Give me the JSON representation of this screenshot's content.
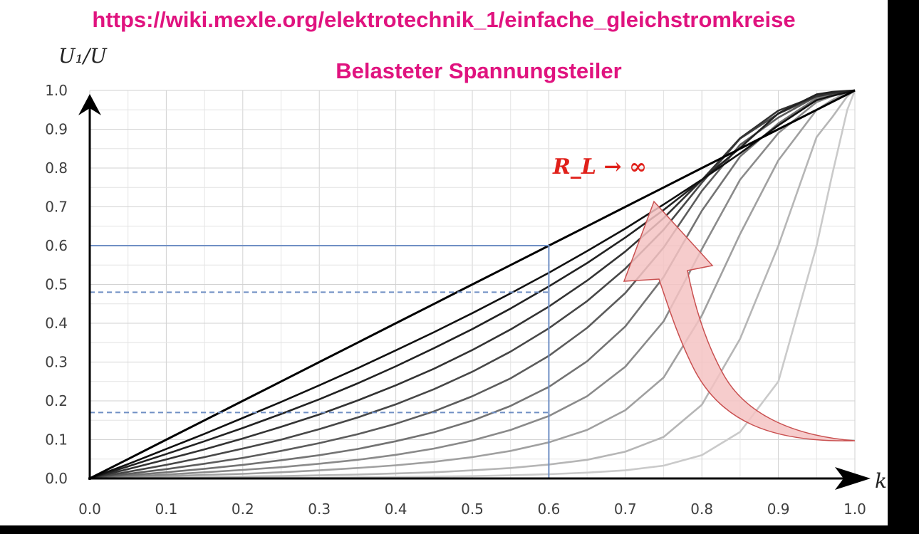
{
  "source_url": "https://wiki.mexle.org/elektrotechnik_1/einfache_gleichstromkreise",
  "chart_data": {
    "type": "line",
    "title": "Belasteter Spannungsteiler",
    "ylabel": "U₁/U",
    "xlabel": "k",
    "xlim": [
      0,
      1
    ],
    "ylim": [
      0,
      1
    ],
    "xticks": [
      "0.0",
      "0.1",
      "0.2",
      "0.3",
      "0.4",
      "0.5",
      "0.6",
      "0.7",
      "0.8",
      "0.9",
      "1.0"
    ],
    "yticks": [
      "0.0",
      "0.1",
      "0.2",
      "0.3",
      "0.4",
      "0.5",
      "0.6",
      "0.7",
      "0.8",
      "0.9",
      "1.0"
    ],
    "grid": true,
    "x": [
      0,
      0.05,
      0.1,
      0.15,
      0.2,
      0.25,
      0.3,
      0.35,
      0.4,
      0.45,
      0.5,
      0.55,
      0.6,
      0.65,
      0.7,
      0.75,
      0.8,
      0.85,
      0.9,
      0.95,
      0.97,
      0.99,
      1.0
    ],
    "series": [
      {
        "color": "#000000",
        "values": [
          0,
          0.05,
          0.1,
          0.15,
          0.2,
          0.25,
          0.3,
          0.35,
          0.4,
          0.45,
          0.5,
          0.55,
          0.6,
          0.65,
          0.7,
          0.75,
          0.8,
          0.85,
          0.9,
          0.95,
          0.97,
          0.99,
          1.0
        ]
      },
      {
        "color": "#111111",
        "values": [
          0,
          0.037,
          0.076,
          0.115,
          0.156,
          0.197,
          0.24,
          0.284,
          0.33,
          0.377,
          0.426,
          0.477,
          0.53,
          0.586,
          0.644,
          0.706,
          0.77,
          0.838,
          0.91,
          0.975,
          0.986,
          0.995,
          1.0
        ]
      },
      {
        "color": "#222222",
        "values": [
          0,
          0.031,
          0.063,
          0.096,
          0.13,
          0.166,
          0.204,
          0.245,
          0.289,
          0.336,
          0.385,
          0.438,
          0.495,
          0.555,
          0.621,
          0.692,
          0.769,
          0.852,
          0.941,
          0.99,
          0.996,
          0.999,
          1.0
        ]
      },
      {
        "color": "#333333",
        "values": [
          0,
          0.024,
          0.049,
          0.075,
          0.103,
          0.133,
          0.165,
          0.201,
          0.24,
          0.283,
          0.331,
          0.384,
          0.443,
          0.51,
          0.585,
          0.671,
          0.769,
          0.877,
          0.948,
          0.985,
          0.992,
          0.998,
          1.0
        ]
      },
      {
        "color": "#474747",
        "values": [
          0,
          0.017,
          0.035,
          0.055,
          0.077,
          0.1,
          0.127,
          0.157,
          0.191,
          0.23,
          0.275,
          0.327,
          0.387,
          0.457,
          0.541,
          0.641,
          0.762,
          0.876,
          0.94,
          0.985,
          0.992,
          0.998,
          1.0
        ]
      },
      {
        "color": "#5c5c5c",
        "values": [
          0,
          0.012,
          0.024,
          0.038,
          0.053,
          0.071,
          0.091,
          0.114,
          0.141,
          0.173,
          0.212,
          0.258,
          0.316,
          0.388,
          0.478,
          0.595,
          0.741,
          0.86,
          0.93,
          0.985,
          0.992,
          0.998,
          1.0
        ]
      },
      {
        "color": "#737373",
        "values": [
          0,
          0.008,
          0.016,
          0.025,
          0.035,
          0.047,
          0.06,
          0.076,
          0.096,
          0.119,
          0.149,
          0.187,
          0.236,
          0.302,
          0.392,
          0.519,
          0.69,
          0.83,
          0.915,
          0.98,
          0.99,
          0.998,
          1.0
        ]
      },
      {
        "color": "#8a8a8a",
        "values": [
          0,
          0.005,
          0.01,
          0.016,
          0.022,
          0.029,
          0.038,
          0.048,
          0.061,
          0.077,
          0.098,
          0.125,
          0.161,
          0.212,
          0.288,
          0.405,
          0.591,
          0.77,
          0.89,
          0.97,
          0.985,
          0.997,
          1.0
        ]
      },
      {
        "color": "#a0a0a0",
        "values": [
          0,
          0.003,
          0.006,
          0.009,
          0.012,
          0.016,
          0.021,
          0.027,
          0.034,
          0.043,
          0.055,
          0.071,
          0.093,
          0.125,
          0.176,
          0.26,
          0.42,
          0.63,
          0.82,
          0.95,
          0.975,
          0.995,
          1.0
        ]
      },
      {
        "color": "#b6b6b6",
        "values": [
          0,
          0.001,
          0.002,
          0.003,
          0.005,
          0.006,
          0.008,
          0.01,
          0.013,
          0.016,
          0.021,
          0.027,
          0.036,
          0.048,
          0.069,
          0.107,
          0.19,
          0.36,
          0.6,
          0.88,
          0.93,
          0.985,
          1.0
        ]
      },
      {
        "color": "#cacaca",
        "values": [
          0,
          0,
          0.001,
          0.001,
          0.001,
          0.002,
          0.002,
          0.003,
          0.004,
          0.005,
          0.006,
          0.008,
          0.011,
          0.015,
          0.021,
          0.033,
          0.06,
          0.12,
          0.25,
          0.6,
          0.78,
          0.95,
          1.0
        ]
      }
    ],
    "reference_lines": [
      {
        "style": "solid",
        "color": "#6f8fc4",
        "points": [
          [
            0,
            0.6
          ],
          [
            0.6,
            0.6
          ],
          [
            0.6,
            0
          ]
        ]
      },
      {
        "style": "dashed",
        "color": "#6f8fc4",
        "points": [
          [
            0,
            0.48
          ],
          [
            0.6,
            0.48
          ]
        ]
      },
      {
        "style": "dashed",
        "color": "#6f8fc4",
        "points": [
          [
            0,
            0.17
          ],
          [
            0.6,
            0.17
          ]
        ]
      }
    ],
    "annotations": [
      {
        "text": "R_L → ∞",
        "color": "#e0201a"
      }
    ]
  }
}
